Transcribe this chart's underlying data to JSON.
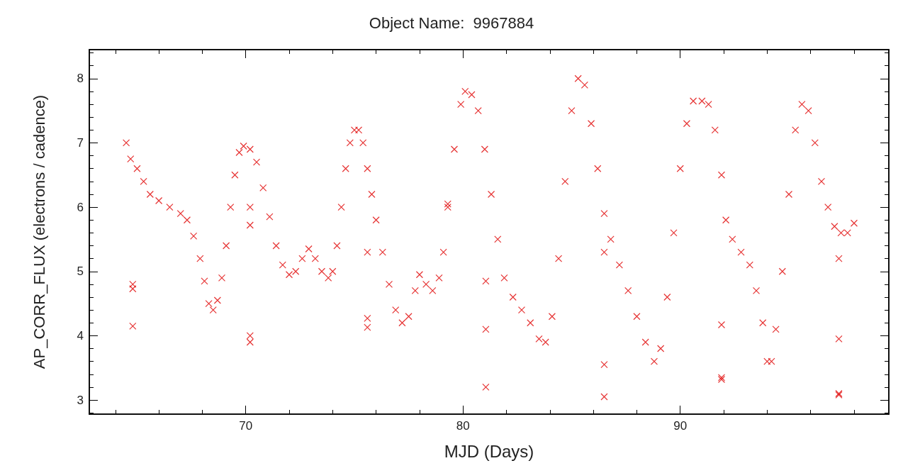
{
  "chart_data": {
    "type": "scatter",
    "title": "Object Name:  9967884",
    "xlabel": "MJD (Days)",
    "ylabel": "AP_CORR_FLUX (electrons / cadence)",
    "xlim": [
      62.8,
      99.6
    ],
    "ylim": [
      2.78,
      8.45
    ],
    "xticks": [
      {
        "value": 64,
        "label": null
      },
      {
        "value": 66,
        "label": null
      },
      {
        "value": 68,
        "label": null
      },
      70,
      {
        "value": 72,
        "label": null
      },
      {
        "value": 74,
        "label": null
      },
      {
        "value": 76,
        "label": null
      },
      {
        "value": 78,
        "label": null
      },
      80,
      {
        "value": 82,
        "label": null
      },
      {
        "value": 84,
        "label": null
      },
      {
        "value": 86,
        "label": null
      },
      {
        "value": 88,
        "label": null
      },
      90,
      {
        "value": 92,
        "label": null
      },
      {
        "value": 94,
        "label": null
      },
      {
        "value": 96,
        "label": null
      },
      {
        "value": 98,
        "label": null
      }
    ],
    "yticks": [
      {
        "value": 2.8,
        "label": null
      },
      3,
      {
        "value": 3.2,
        "label": null
      },
      {
        "value": 3.4,
        "label": null
      },
      {
        "value": 3.6,
        "label": null
      },
      {
        "value": 3.8,
        "label": null
      },
      4,
      {
        "value": 4.2,
        "label": null
      },
      {
        "value": 4.4,
        "label": null
      },
      {
        "value": 4.6,
        "label": null
      },
      {
        "value": 4.8,
        "label": null
      },
      5,
      {
        "value": 5.2,
        "label": null
      },
      {
        "value": 5.4,
        "label": null
      },
      {
        "value": 5.6,
        "label": null
      },
      {
        "value": 5.8,
        "label": null
      },
      6,
      {
        "value": 6.2,
        "label": null
      },
      {
        "value": 6.4,
        "label": null
      },
      {
        "value": 6.6,
        "label": null
      },
      {
        "value": 6.8,
        "label": null
      },
      7,
      {
        "value": 7.2,
        "label": null
      },
      {
        "value": 7.4,
        "label": null
      },
      {
        "value": 7.6,
        "label": null
      },
      {
        "value": 7.8,
        "label": null
      },
      8,
      {
        "value": 8.2,
        "label": null
      },
      {
        "value": 8.4,
        "label": null
      }
    ],
    "marker": "cross",
    "grid": false,
    "series": [
      {
        "color": "#e00000",
        "x": [
          64.5,
          64.7,
          65.0,
          65.3,
          65.6,
          66.0,
          66.5,
          67.0,
          67.3,
          67.6,
          67.9,
          68.1,
          68.3,
          68.5,
          68.7,
          68.9,
          69.1,
          69.3,
          69.5,
          69.7,
          69.9,
          70.2,
          70.5,
          70.8,
          71.1,
          71.4,
          71.7,
          72.0,
          72.3,
          72.6,
          72.9,
          73.2,
          73.5,
          73.8,
          74.0,
          74.2,
          74.4,
          74.6,
          74.8,
          75.0,
          75.2,
          75.4,
          75.6,
          75.8,
          76.0,
          76.3,
          76.6,
          76.9,
          77.2,
          77.5,
          77.8,
          78.0,
          78.3,
          78.6,
          78.9,
          79.1,
          79.3,
          79.6,
          79.9,
          80.1,
          80.4,
          80.7,
          81.0,
          81.3,
          81.6,
          81.9,
          82.3,
          82.7,
          83.1,
          83.5,
          83.8,
          84.1,
          84.4,
          84.7,
          85.0,
          85.3,
          85.6,
          85.9,
          86.2,
          86.5,
          86.8,
          87.2,
          87.6,
          88.0,
          88.4,
          88.8,
          89.1,
          89.4,
          89.7,
          90.0,
          90.3,
          90.6,
          91.0,
          91.3,
          91.6,
          91.9,
          92.1,
          92.4,
          92.8,
          93.2,
          93.5,
          93.8,
          94.0,
          94.2,
          94.4,
          94.7,
          95.0,
          95.3,
          95.6,
          95.9,
          96.2,
          96.5,
          96.8,
          97.1,
          97.4,
          97.7,
          98.0,
          64.8,
          64.8,
          64.8,
          70.2,
          70.2,
          70.2,
          70.2,
          75.6,
          75.6,
          75.6,
          79.3,
          81.05,
          81.05,
          81.05,
          86.5,
          86.5,
          86.5,
          91.9,
          91.9,
          91.9,
          97.3,
          97.3,
          97.3,
          97.3
        ],
        "values": [
          7.0,
          6.75,
          6.6,
          6.4,
          6.2,
          6.1,
          6.0,
          5.9,
          5.8,
          5.55,
          5.2,
          4.85,
          4.5,
          4.4,
          4.55,
          4.9,
          5.4,
          6.0,
          6.5,
          6.85,
          6.95,
          6.9,
          6.7,
          6.3,
          5.85,
          5.4,
          5.1,
          4.95,
          5.0,
          5.2,
          5.35,
          5.2,
          5.0,
          4.9,
          5.0,
          5.4,
          6.0,
          6.6,
          7.0,
          7.2,
          7.2,
          7.0,
          6.6,
          6.2,
          5.8,
          5.3,
          4.8,
          4.4,
          4.2,
          4.3,
          4.7,
          4.95,
          4.8,
          4.7,
          4.9,
          5.3,
          6.0,
          6.9,
          7.6,
          7.8,
          7.75,
          7.5,
          6.9,
          6.2,
          5.5,
          4.9,
          4.6,
          4.4,
          4.2,
          3.95,
          3.9,
          4.3,
          5.2,
          6.4,
          7.5,
          8.0,
          7.9,
          7.3,
          6.6,
          5.9,
          5.5,
          5.1,
          4.7,
          4.3,
          3.9,
          3.6,
          3.8,
          4.6,
          5.6,
          6.6,
          7.3,
          7.65,
          7.65,
          7.6,
          7.2,
          6.5,
          5.8,
          5.5,
          5.3,
          5.1,
          4.7,
          4.2,
          3.6,
          3.6,
          4.1,
          5.0,
          6.2,
          7.2,
          7.6,
          7.5,
          7.0,
          6.4,
          6.0,
          5.7,
          5.6,
          5.6,
          5.75,
          4.8,
          4.73,
          4.15,
          6.0,
          5.72,
          4.0,
          3.9,
          5.3,
          4.27,
          4.13,
          6.05,
          4.85,
          4.1,
          3.2,
          5.3,
          3.55,
          3.05,
          4.17,
          3.35,
          3.32,
          5.2,
          3.95,
          3.1,
          3.08
        ]
      }
    ]
  }
}
